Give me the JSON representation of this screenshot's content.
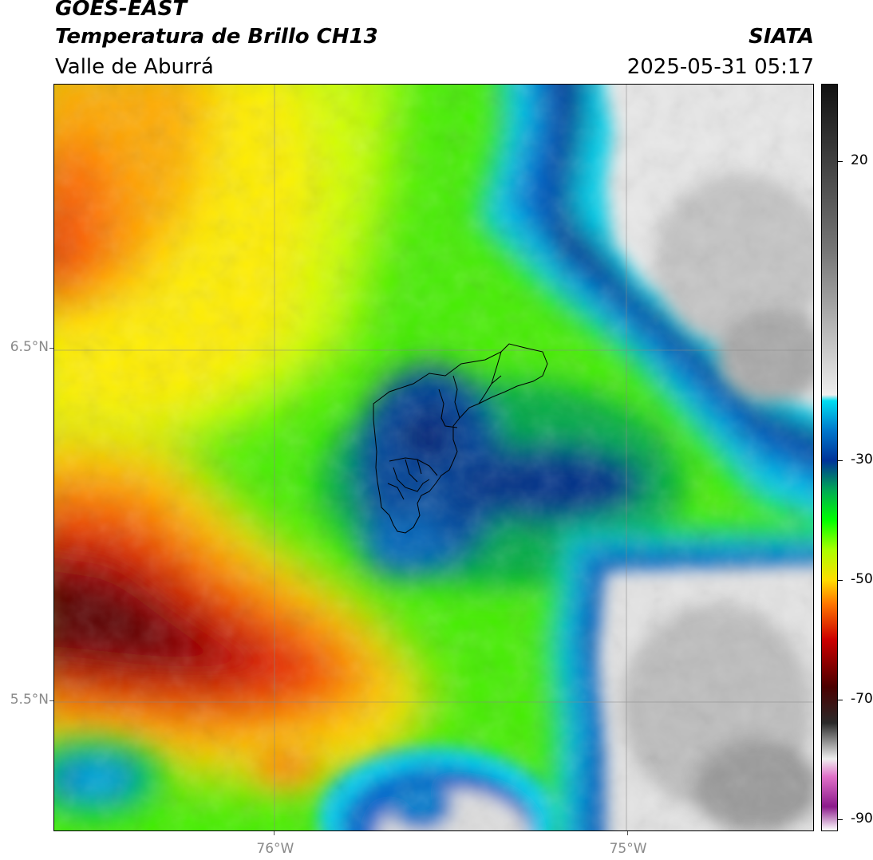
{
  "header": {
    "satellite": "GOES-EAST",
    "product": "Temperatura de Brillo CH13",
    "region": "Valle de Aburrá",
    "agency": "SIATA",
    "datetime": "2025-05-31 05:17"
  },
  "map": {
    "lon_range": [
      -76.625,
      -74.47
    ],
    "lat_range": [
      5.13,
      7.25
    ],
    "lat_labels": [
      {
        "text": "6.5°N",
        "value": 6.5
      },
      {
        "text": "5.5°N",
        "value": 5.5
      }
    ],
    "lon_labels": [
      {
        "text": "76°W",
        "value": -76.0
      },
      {
        "text": "75°W",
        "value": -75.0
      }
    ],
    "gridlines": true
  },
  "colorbar": {
    "range": [
      -92,
      33
    ],
    "ticks": [
      {
        "text": "20",
        "value": 20
      },
      {
        "text": "-30",
        "value": -30
      },
      {
        "text": "-50",
        "value": -50
      },
      {
        "text": "-70",
        "value": -70
      },
      {
        "text": "-90",
        "value": -90
      }
    ],
    "palette": [
      "#ffffff",
      "#8b1a8b",
      "#e070c8",
      "#eeeeee",
      "#2a2a2a",
      "#4a0000",
      "#cc0000",
      "#ff7700",
      "#ffdd00",
      "#aaff00",
      "#00ff00",
      "#00aa55",
      "#003399",
      "#0077cc",
      "#00ddf0",
      "#eeeeee",
      "#777777",
      "#111111"
    ]
  }
}
